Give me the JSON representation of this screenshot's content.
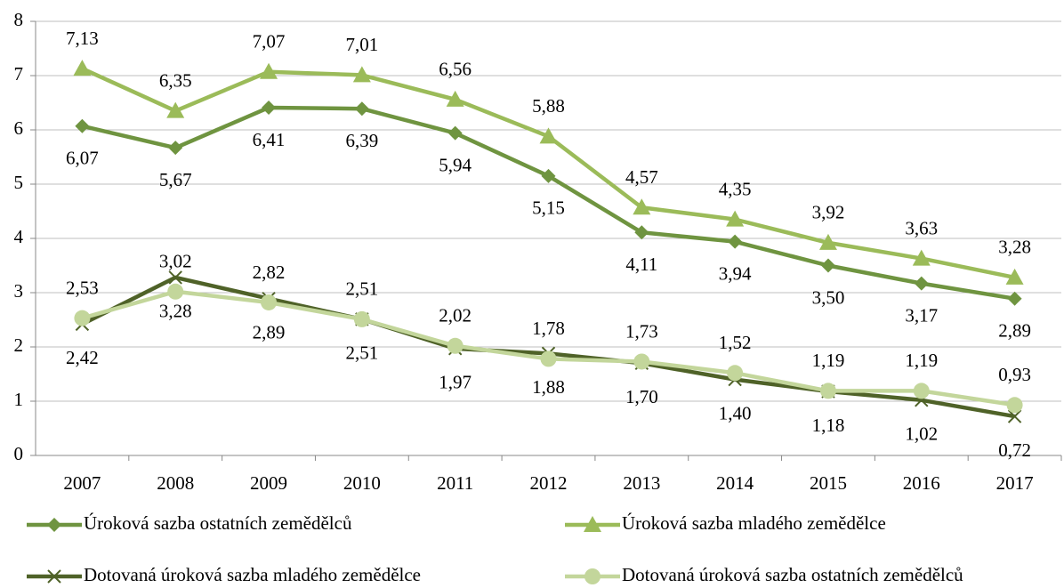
{
  "chart_data": {
    "type": "line",
    "categories": [
      "2007",
      "2008",
      "2009",
      "2010",
      "2011",
      "2012",
      "2013",
      "2014",
      "2015",
      "2016",
      "2017"
    ],
    "ylim": [
      0,
      8
    ],
    "yticks": [
      0,
      1,
      2,
      3,
      4,
      5,
      6,
      7,
      8
    ],
    "grid": true,
    "legend": "bottom",
    "series": [
      {
        "name": "Úroková sazba ostatních zemědělců",
        "color": "#6f9440",
        "marker": "diamond",
        "values": [
          6.07,
          5.67,
          6.41,
          6.39,
          5.94,
          5.15,
          4.11,
          3.94,
          3.5,
          3.17,
          2.89
        ],
        "value_labels": [
          "6,07",
          "5,67",
          "6,41",
          "6,39",
          "5,94",
          "5,15",
          "4,11",
          "3,94",
          "3,50",
          "3,17",
          "2,89"
        ]
      },
      {
        "name": "Úroková sazba mladého zemědělce",
        "color": "#9bbb59",
        "marker": "triangle",
        "values": [
          7.13,
          6.35,
          7.07,
          7.01,
          6.56,
          5.88,
          4.57,
          4.35,
          3.92,
          3.63,
          3.28
        ],
        "value_labels": [
          "7,13",
          "6,35",
          "7,07",
          "7,01",
          "6,56",
          "5,88",
          "4,57",
          "4,35",
          "3,92",
          "3,63",
          "3,28"
        ]
      },
      {
        "name": "Dotovaná úroková sazba mladého zemědělce",
        "color": "#4f6228",
        "marker": "x",
        "values": [
          2.42,
          3.28,
          2.89,
          2.51,
          1.97,
          1.88,
          1.7,
          1.4,
          1.18,
          1.02,
          0.72
        ],
        "value_labels": [
          "2,42",
          "3,28",
          "2,89",
          "2,51",
          "1,97",
          "1,88",
          "1,70",
          "1,40",
          "1,18",
          "1,02",
          "0,72"
        ]
      },
      {
        "name": "Dotovaná úroková sazba ostatních zemědělců",
        "color": "#c3d69b",
        "marker": "circle",
        "values": [
          2.53,
          3.02,
          2.82,
          2.51,
          2.02,
          1.78,
          1.73,
          1.52,
          1.19,
          1.19,
          0.93
        ],
        "value_labels": [
          "2,53",
          "3,02",
          "2,82",
          "2,51",
          "2,02",
          "1,78",
          "1,73",
          "1,52",
          "1,19",
          "1,19",
          "0,93"
        ]
      }
    ]
  }
}
